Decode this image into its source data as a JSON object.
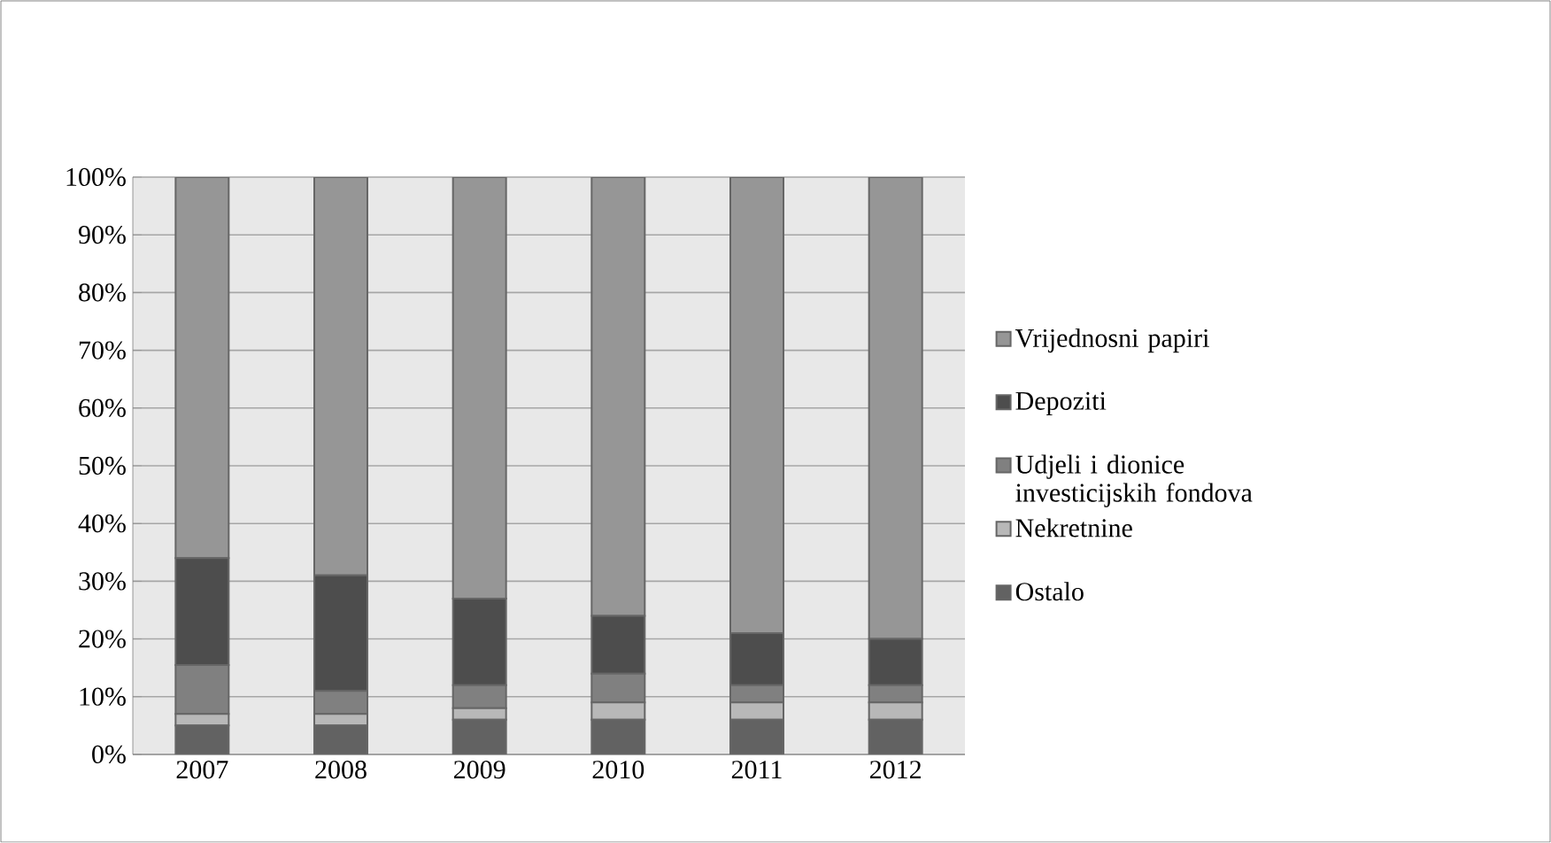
{
  "chart_data": {
    "type": "bar",
    "stacked": true,
    "categories": [
      "2007",
      "2008",
      "2009",
      "2010",
      "2011",
      "2012"
    ],
    "series": [
      {
        "name": "Ostalo",
        "color": "#626262",
        "values": [
          5,
          5,
          6,
          6,
          6,
          6
        ]
      },
      {
        "name": "Nekretnine",
        "color": "#b8b8b8",
        "values": [
          2,
          2,
          2,
          3,
          3,
          3
        ]
      },
      {
        "name": "Udjeli i dionice investicijskih fondova",
        "color": "#808080",
        "values": [
          8.5,
          4,
          4,
          5,
          3,
          3
        ]
      },
      {
        "name": "Depoziti",
        "color": "#4d4d4d",
        "values": [
          18.5,
          20,
          15,
          10,
          9,
          8
        ]
      },
      {
        "name": "Vrijednosni papiri",
        "color": "#969696",
        "values": [
          66,
          69,
          73,
          76,
          79,
          80
        ]
      }
    ],
    "ylim": [
      0,
      100
    ],
    "yticks": [
      {
        "value": 0,
        "label": "0%"
      },
      {
        "value": 10,
        "label": "10%"
      },
      {
        "value": 20,
        "label": "20%"
      },
      {
        "value": 30,
        "label": "30%"
      },
      {
        "value": 40,
        "label": "40%"
      },
      {
        "value": 50,
        "label": "50%"
      },
      {
        "value": 60,
        "label": "60%"
      },
      {
        "value": 70,
        "label": "70%"
      },
      {
        "value": 80,
        "label": "80%"
      },
      {
        "value": 90,
        "label": "90%"
      },
      {
        "value": 100,
        "label": "100%"
      }
    ],
    "grid": "y",
    "legend": "right"
  }
}
